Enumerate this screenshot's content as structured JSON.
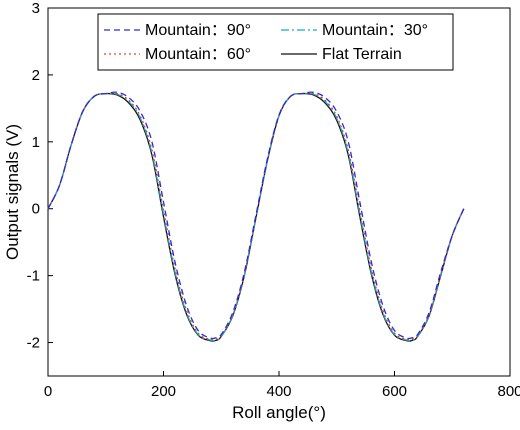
{
  "chart_data": {
    "type": "line",
    "title": "",
    "xlabel": "Roll angle(°)",
    "ylabel": "Output signals (V)",
    "xlim": [
      0,
      800
    ],
    "ylim": [
      -2.5,
      3
    ],
    "xticks": [
      0,
      200,
      400,
      600,
      800
    ],
    "yticks": [
      -2,
      -1,
      0,
      1,
      2,
      3
    ],
    "xtick_labels": [
      "0",
      "200",
      "400",
      "600",
      "800"
    ],
    "ytick_labels": [
      "-2",
      "-1",
      "0",
      "1",
      "2",
      "3"
    ],
    "grid": false,
    "legend_position": "top",
    "x": [
      0,
      20,
      40,
      60,
      80,
      100,
      120,
      140,
      160,
      180,
      200,
      220,
      240,
      260,
      280,
      290,
      300,
      320,
      340,
      360,
      380,
      400,
      420,
      440,
      460,
      480,
      500,
      520,
      540,
      560,
      580,
      600,
      620,
      630,
      640,
      660,
      680,
      700,
      720
    ],
    "series": [
      {
        "name": "Mountain：90°",
        "color": "#2a2ae0",
        "dash": "6,4",
        "values": [
          0,
          0.35,
          0.95,
          1.45,
          1.68,
          1.72,
          1.74,
          1.66,
          1.45,
          1.0,
          0.1,
          -0.8,
          -1.45,
          -1.82,
          -1.93,
          -1.93,
          -1.88,
          -1.55,
          -0.95,
          -0.1,
          0.75,
          1.4,
          1.68,
          1.72,
          1.74,
          1.66,
          1.45,
          1.0,
          0.1,
          -0.8,
          -1.45,
          -1.82,
          -1.93,
          -1.93,
          -1.88,
          -1.55,
          -0.95,
          -0.4,
          0
        ]
      },
      {
        "name": "Mountain：60°",
        "color": "#e04040",
        "dash": "2,3",
        "values": [
          0,
          0.35,
          0.95,
          1.45,
          1.68,
          1.72,
          1.72,
          1.62,
          1.38,
          0.88,
          -0.02,
          -0.9,
          -1.52,
          -1.86,
          -1.95,
          -1.95,
          -1.9,
          -1.58,
          -0.98,
          -0.12,
          0.74,
          1.4,
          1.68,
          1.72,
          1.72,
          1.62,
          1.38,
          0.88,
          -0.02,
          -0.9,
          -1.52,
          -1.86,
          -1.95,
          -1.95,
          -1.9,
          -1.58,
          -0.98,
          -0.4,
          0
        ]
      },
      {
        "name": "Mountain：30°",
        "color": "#10b0b0",
        "dash": "8,3,2,3",
        "values": [
          0,
          0.35,
          0.95,
          1.45,
          1.68,
          1.72,
          1.71,
          1.6,
          1.35,
          0.83,
          -0.08,
          -0.95,
          -1.56,
          -1.88,
          -1.96,
          -1.97,
          -1.91,
          -1.59,
          -0.99,
          -0.13,
          0.73,
          1.39,
          1.68,
          1.72,
          1.71,
          1.6,
          1.35,
          0.83,
          -0.08,
          -0.95,
          -1.56,
          -1.88,
          -1.96,
          -1.97,
          -1.91,
          -1.59,
          -0.99,
          -0.4,
          0
        ]
      },
      {
        "name": "Flat Terrain",
        "color": "#111111",
        "dash": "",
        "values": [
          0,
          0.35,
          0.95,
          1.45,
          1.68,
          1.72,
          1.7,
          1.58,
          1.32,
          0.8,
          -0.12,
          -0.98,
          -1.58,
          -1.89,
          -1.97,
          -1.97,
          -1.91,
          -1.6,
          -1.0,
          -0.14,
          0.72,
          1.39,
          1.68,
          1.72,
          1.7,
          1.58,
          1.32,
          0.8,
          -0.12,
          -0.98,
          -1.58,
          -1.89,
          -1.97,
          -1.97,
          -1.91,
          -1.6,
          -1.0,
          -0.4,
          0
        ]
      }
    ]
  }
}
